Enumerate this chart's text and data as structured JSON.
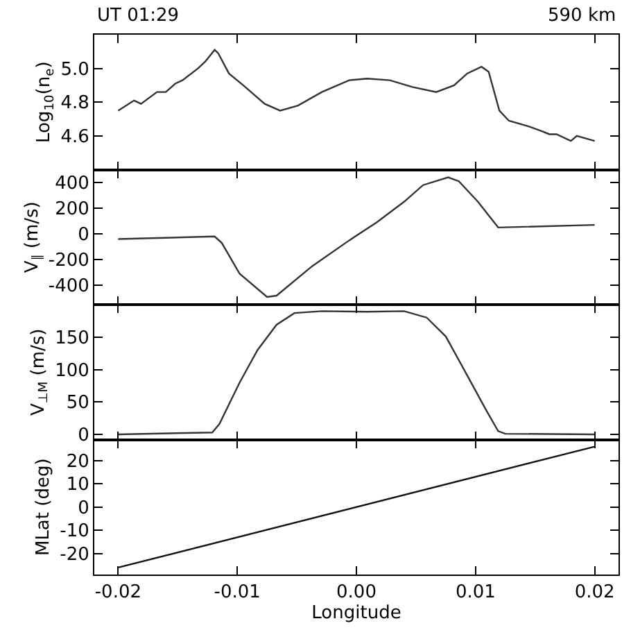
{
  "chart_data": [
    {
      "type": "line",
      "annotations": [
        "UT 01:29",
        "590 km"
      ],
      "ylabel": "Log$_{10}$(n$_{e}$)",
      "tick_labels": "y",
      "xlim": [
        -0.022,
        0.022
      ],
      "ylim": [
        4.4,
        5.2
      ],
      "yticks": [
        4.6,
        4.8,
        {
          "value": 5,
          "label": "5.0"
        }
      ],
      "series": [
        {
          "color": "#333333",
          "x": [
            -0.02,
            -0.01866,
            -0.01808,
            -0.01674,
            -0.016,
            -0.0152,
            -0.0146,
            -0.0133,
            -0.0127,
            -0.0119,
            -0.0116,
            -0.0107,
            -0.0095,
            -0.0077,
            -0.0064,
            -0.0049,
            -0.0029,
            -0.0006,
            0.0009,
            0.0028,
            0.0047,
            0.0067,
            0.0082,
            0.0093,
            0.0105,
            0.0111,
            0.012,
            0.0128,
            0.0143,
            0.0155,
            0.0162,
            0.0168,
            0.018,
            0.0185,
            0.02
          ],
          "values": [
            4.75,
            4.81,
            4.79,
            4.86,
            4.86,
            4.91,
            4.93,
            5.0,
            5.04,
            5.11,
            5.09,
            4.97,
            4.9,
            4.79,
            4.75,
            4.78,
            4.86,
            4.93,
            4.94,
            4.93,
            4.89,
            4.86,
            4.9,
            4.97,
            5.01,
            4.98,
            4.75,
            4.69,
            4.66,
            4.63,
            4.61,
            4.61,
            4.57,
            4.6,
            4.57
          ]
        }
      ]
    },
    {
      "type": "line",
      "ylabel": "V$_{∥}$ (m/s)",
      "tick_labels": "y",
      "xlim": [
        -0.022,
        0.022
      ],
      "ylim": [
        -550,
        500
      ],
      "yticks": [
        -400,
        -200,
        0,
        200,
        400
      ],
      "series": [
        {
          "color": "#333333",
          "x": [
            -0.02,
            -0.0119,
            -0.0113,
            -0.0098,
            -0.0075,
            -0.0067,
            -0.0037,
            -0.0006,
            0.0017,
            0.004,
            0.0056,
            0.0077,
            0.0086,
            0.0102,
            0.0119,
            0.02
          ],
          "values": [
            -40,
            -20,
            -70,
            -310,
            -490,
            -480,
            -250,
            -50,
            90,
            250,
            380,
            440,
            410,
            250,
            50,
            70
          ]
        }
      ]
    },
    {
      "type": "line",
      "ylabel": "V$_{⊥M}$ (m/s)",
      "tick_labels": "y",
      "xlim": [
        -0.022,
        0.022
      ],
      "ylim": [
        -8,
        200
      ],
      "yticks": [
        0,
        50,
        100,
        150
      ],
      "series": [
        {
          "color": "#333333",
          "x": [
            -0.02,
            -0.0121,
            -0.0115,
            -0.0098,
            -0.0083,
            -0.0067,
            -0.0052,
            -0.0029,
            0.0009,
            0.004,
            0.0059,
            0.0075,
            0.009,
            0.0109,
            0.0119,
            0.0125,
            0.02
          ],
          "values": [
            0,
            3,
            16,
            80,
            130,
            169,
            187,
            190,
            189,
            190,
            180,
            151,
            101,
            37,
            5,
            1,
            0
          ]
        }
      ]
    },
    {
      "type": "line",
      "xlabel": "Longitude",
      "ylabel": "MLat (deg)",
      "xlim": [
        -0.022,
        0.022
      ],
      "xticks": [
        -0.02,
        -0.01,
        {
          "value": 0,
          "label": "0.00"
        },
        0.01,
        0.02
      ],
      "ylim": [
        -29,
        29
      ],
      "yticks": [
        -20,
        -10,
        0,
        10,
        20
      ],
      "series": [
        {
          "color": "#111111",
          "x": [
            -0.02,
            0.02
          ],
          "values": [
            -26,
            26
          ]
        }
      ]
    }
  ]
}
